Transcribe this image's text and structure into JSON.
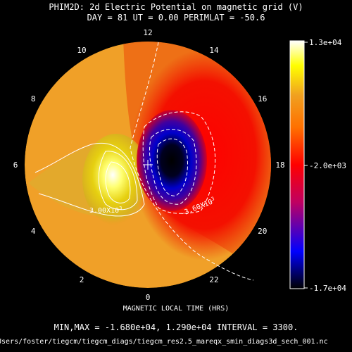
{
  "header": {
    "title": "PHIM2D: 2d Electric Potential on magnetic grid (V)",
    "subtitle": "DAY =   81   UT =   0.00   PERIMLAT = -50.6"
  },
  "footer": {
    "minmax": "MIN,MAX = -1.680e+04, 1.290e+04 INTERVAL =       3300.",
    "filepath": "Users/foster/tiegcm/tiegcm_diags/tiegcm_res2.5_mareqx_smin_diags3d_sech_001.nc"
  },
  "chart_data": {
    "type": "heatmap",
    "projection": "polar",
    "title": "PHIM2D: 2d Electric Potential on magnetic grid (V)",
    "xlabel": "MAGNETIC LOCAL TIME (HRS)",
    "clock_labels": [
      "12",
      "14",
      "16",
      "18",
      "20",
      "22",
      "0",
      "2",
      "4",
      "6",
      "8",
      "10"
    ],
    "clock_hours": [
      12,
      14,
      16,
      18,
      20,
      22,
      0,
      2,
      4,
      6,
      8,
      10
    ],
    "min": -16800,
    "max": 12900,
    "interval": 3300,
    "colorbar": {
      "labels": [
        "1.3e+04",
        "-2.0e+03",
        "-1.7e+04"
      ],
      "values": [
        13000,
        -2000,
        -17000
      ],
      "colormap": [
        "#000000",
        "#0000ff",
        "#ff0000",
        "#ffa500",
        "#ffff00",
        "#ffffff"
      ]
    },
    "contour_labels": [
      {
        "text": "3.00X10",
        "sup": "3",
        "value": 3000
      },
      {
        "text": "-3.60X10",
        "sup": "3",
        "value": -3600
      }
    ],
    "extrema": {
      "max": {
        "mlt": 5.0,
        "colat_frac": 0.45,
        "value": 12900
      },
      "min": {
        "mlt": 19.2,
        "colat_frac": 0.28,
        "value": -16800
      }
    },
    "background": "#000000"
  }
}
